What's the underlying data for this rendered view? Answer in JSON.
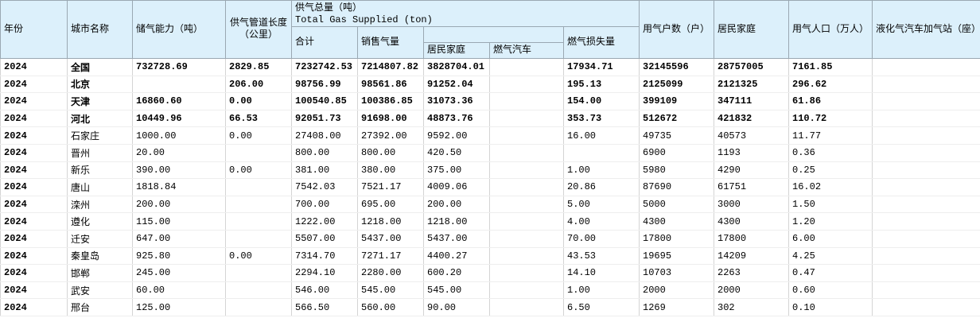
{
  "header": {
    "year": "年份",
    "city": "城市名称",
    "storage": "储气能力（吨）",
    "pipeline": "供气管道长度（公里）",
    "supply_total": "供气总量（吨）",
    "supply_total_en": "Total Gas Supplied (ton)",
    "subtotal": "合计",
    "sales": "销售气量",
    "household": "居民家庭",
    "vehicle": "燃气汽车",
    "loss": "燃气损失量",
    "users": "用气户数（户）",
    "users_household": "居民家庭",
    "population": "用气人口（万人）",
    "lpg_stations": "液化气汽车加气站（座）"
  },
  "table": {
    "rows": [
      [
        "2024",
        "全国",
        "732728.69",
        "2829.85",
        "7232742.53",
        "7214807.82",
        "3828704.01",
        null,
        "17934.71",
        "32145596",
        "28757005",
        "7161.85",
        null
      ],
      [
        "2024",
        "北京",
        null,
        "206.00",
        "98756.99",
        "98561.86",
        "91252.04",
        null,
        "195.13",
        "2125099",
        "2121325",
        "296.62",
        null
      ],
      [
        "2024",
        "天津",
        "16860.60",
        "0.00",
        "100540.85",
        "100386.85",
        "31073.36",
        null,
        "154.00",
        "399109",
        "347111",
        "61.86",
        null
      ],
      [
        "2024",
        "河北",
        "10449.96",
        "66.53",
        "92051.73",
        "91698.00",
        "48873.76",
        null,
        "353.73",
        "512672",
        "421832",
        "110.72",
        null
      ],
      [
        "2024",
        "石家庄",
        "1000.00",
        "0.00",
        "27408.00",
        "27392.00",
        "9592.00",
        null,
        "16.00",
        "49735",
        "40573",
        "11.77",
        null
      ],
      [
        "2024",
        "晋州",
        "20.00",
        null,
        "800.00",
        "800.00",
        "420.50",
        null,
        null,
        "6900",
        "1193",
        "0.36",
        null
      ],
      [
        "2024",
        "新乐",
        "390.00",
        "0.00",
        "381.00",
        "380.00",
        "375.00",
        null,
        "1.00",
        "5980",
        "4290",
        "0.25",
        null
      ],
      [
        "2024",
        "唐山",
        "1818.84",
        null,
        "7542.03",
        "7521.17",
        "4009.06",
        null,
        "20.86",
        "87690",
        "61751",
        "16.02",
        null
      ],
      [
        "2024",
        "滦州",
        "200.00",
        null,
        "700.00",
        "695.00",
        "200.00",
        null,
        "5.00",
        "5000",
        "3000",
        "1.50",
        null
      ],
      [
        "2024",
        "遵化",
        "115.00",
        null,
        "1222.00",
        "1218.00",
        "1218.00",
        null,
        "4.00",
        "4300",
        "4300",
        "1.20",
        null
      ],
      [
        "2024",
        "迁安",
        "647.00",
        null,
        "5507.00",
        "5437.00",
        "5437.00",
        null,
        "70.00",
        "17800",
        "17800",
        "6.00",
        null
      ],
      [
        "2024",
        "秦皇岛",
        "925.80",
        "0.00",
        "7314.70",
        "7271.17",
        "4400.27",
        null,
        "43.53",
        "19695",
        "14209",
        "4.25",
        null
      ],
      [
        "2024",
        "邯郸",
        "245.00",
        null,
        "2294.10",
        "2280.00",
        "600.20",
        null,
        "14.10",
        "10703",
        "2263",
        "0.47",
        null
      ],
      [
        "2024",
        "武安",
        "60.00",
        null,
        "546.00",
        "545.00",
        "545.00",
        null,
        "1.00",
        "2000",
        "2000",
        "0.60",
        null
      ],
      [
        "2024",
        "邢台",
        "125.00",
        null,
        "566.50",
        "560.00",
        "90.00",
        null,
        "6.50",
        "1269",
        "302",
        "0.10",
        null
      ]
    ]
  }
}
